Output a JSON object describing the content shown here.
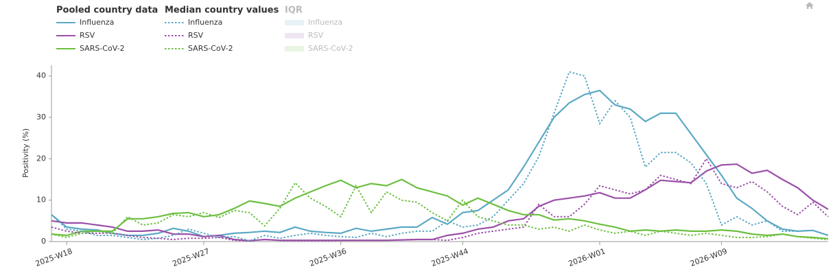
{
  "chart_data": {
    "type": "line",
    "legend_groups": [
      "Pooled country data",
      "Median country values",
      "IQR"
    ],
    "iqr_items": [
      "Influenza",
      "RSV",
      "SARS-CoV-2"
    ],
    "y_label": "Positivity (%)",
    "categories": [
      null,
      "2025-W18",
      null,
      null,
      null,
      null,
      null,
      null,
      null,
      null,
      "2025-W27",
      null,
      null,
      null,
      null,
      null,
      null,
      null,
      null,
      "2025-W36",
      null,
      null,
      null,
      null,
      null,
      null,
      null,
      "2025-W44",
      null,
      null,
      null,
      null,
      null,
      null,
      null,
      null,
      "2026-W01",
      null,
      null,
      null,
      null,
      null,
      null,
      null,
      "2026-W09",
      null,
      null,
      null,
      null,
      null,
      null,
      null
    ],
    "ylim": [
      0,
      42.6
    ],
    "yticks": [
      0,
      10,
      20,
      30,
      40
    ],
    "series": [
      {
        "name": "Influenza",
        "color": "#5ba8c4",
        "dash": "solid",
        "values": [
          6.5,
          3.5,
          3,
          2.8,
          2,
          1.5,
          1.5,
          2,
          3.2,
          2.5,
          1.2,
          1.5,
          2,
          2.2,
          2.5,
          2.2,
          3.5,
          2.5,
          2.2,
          2,
          3.2,
          2.5,
          3,
          3.5,
          3.5,
          5.8,
          4.2,
          7,
          7.5,
          10,
          12.5,
          18,
          24,
          30,
          33.5,
          35.5,
          36.5,
          33,
          32,
          29,
          31,
          31,
          26,
          21,
          16,
          10.5,
          8,
          5,
          3,
          2.5,
          2.7,
          1.5
        ]
      },
      {
        "name": "RSV",
        "color": "#9b4fa8",
        "dash": "solid",
        "values": [
          5,
          4.5,
          4.5,
          4,
          3.5,
          2.5,
          2.5,
          2.8,
          1.8,
          1.8,
          1.2,
          1.5,
          0.5,
          0.2,
          0.5,
          0.3,
          0.3,
          0.3,
          0.3,
          0.3,
          0.3,
          0.3,
          0.3,
          0.4,
          0.5,
          0.5,
          1.5,
          2,
          3,
          3.5,
          5,
          5.5,
          8.5,
          10,
          10.5,
          11,
          11.8,
          10.5,
          10.5,
          12.5,
          14.8,
          14.5,
          14.2,
          17,
          18.5,
          18.7,
          16.5,
          17.2,
          15,
          13,
          10,
          7.8
        ]
      },
      {
        "name": "SARS-CoV-2",
        "color": "#6cbf3f",
        "dash": "solid",
        "values": [
          1.8,
          1.5,
          2.5,
          2.5,
          2.5,
          5.5,
          5.5,
          6,
          6.8,
          7,
          6,
          6.5,
          8,
          9.8,
          9.2,
          8.5,
          10.5,
          12,
          13.5,
          14.8,
          13,
          14,
          13.5,
          15,
          13,
          12,
          11,
          8.8,
          10.5,
          9,
          7.5,
          6.5,
          6.5,
          5.2,
          5.5,
          5,
          4.2,
          3.5,
          2.5,
          2.8,
          2.5,
          2.8,
          2.5,
          2.5,
          2.8,
          2.5,
          1.8,
          1.5,
          1.8,
          1.2,
          1,
          0.7
        ]
      },
      {
        "name": "Influenza",
        "color": "#5ba8c4",
        "dash": "dotted",
        "values": [
          6.5,
          3,
          2.5,
          1.5,
          1.5,
          1,
          0.5,
          0.8,
          1.5,
          3,
          2,
          1,
          1.2,
          0.2,
          1.5,
          0.8,
          1.5,
          2,
          1.5,
          1.2,
          1,
          2,
          1.2,
          2,
          2.5,
          2.5,
          5,
          3.5,
          4,
          6,
          10,
          14,
          20.5,
          31,
          41,
          40,
          28.5,
          34,
          30,
          18,
          21.5,
          21.5,
          19,
          14,
          4,
          6,
          4,
          5,
          2.5,
          2.5,
          2.7,
          1.5
        ]
      },
      {
        "name": "RSV",
        "color": "#9b4fa8",
        "dash": "dotted",
        "values": [
          3.5,
          2.5,
          2,
          2,
          2,
          1.5,
          1,
          0.8,
          0.5,
          0.8,
          0.8,
          1,
          0.3,
          0.2,
          0.5,
          0.3,
          0.2,
          0.2,
          0.2,
          0.3,
          0.3,
          0.3,
          0.3,
          0.4,
          0.5,
          0.5,
          0.3,
          1,
          2,
          2.5,
          3,
          3.5,
          9,
          6,
          6,
          9,
          13.5,
          12.5,
          11.5,
          12.5,
          16,
          15,
          14,
          20,
          14,
          13,
          14.5,
          12,
          8.5,
          6.5,
          9.5,
          6
        ]
      },
      {
        "name": "SARS-CoV-2",
        "color": "#6cbf3f",
        "dash": "dotted",
        "values": [
          1.8,
          1,
          2,
          2.5,
          2,
          6,
          4,
          4.5,
          6.5,
          6,
          7,
          5.8,
          7.5,
          7,
          3.8,
          8,
          14.2,
          10.5,
          8.5,
          6,
          13.5,
          7,
          12,
          10,
          9.5,
          7,
          5,
          10,
          6,
          5,
          4,
          4,
          3,
          3.5,
          2.5,
          4,
          2.8,
          2,
          2.5,
          1.5,
          2.5,
          2,
          1.5,
          2,
          1.5,
          1,
          1,
          1.2,
          1.8,
          1.2,
          0.8,
          0.5
        ]
      }
    ]
  }
}
